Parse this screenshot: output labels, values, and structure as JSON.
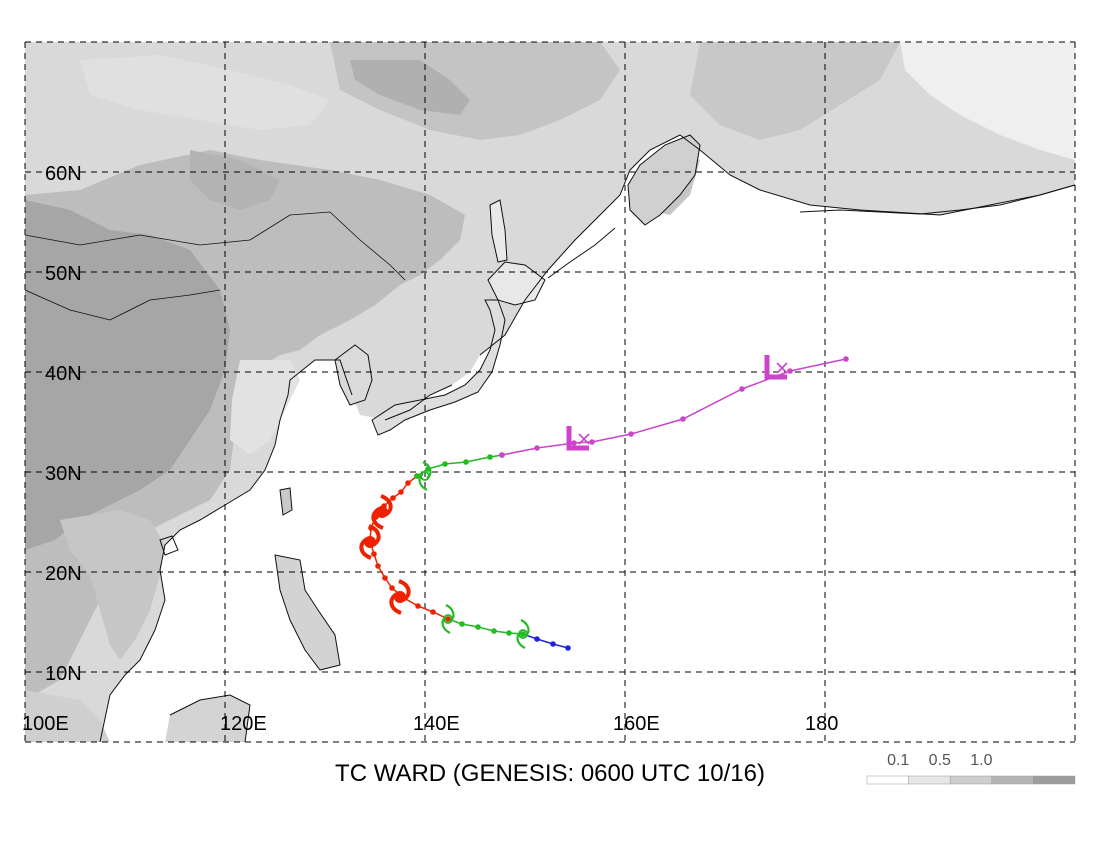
{
  "title": "TC WARD (GENESIS: 0600 UTC 10/16)",
  "map": {
    "lat_labels": [
      "60N",
      "50N",
      "40N",
      "30N",
      "20N",
      "10N"
    ],
    "lon_labels": [
      "100E",
      "120E",
      "140E",
      "160E",
      "180"
    ],
    "lon_range": [
      100,
      205
    ],
    "lat_range": [
      3,
      73
    ],
    "gridline_style": "dashed"
  },
  "track": {
    "stages": [
      {
        "name": "pre-genesis",
        "color": "#2222dd",
        "points": [
          [
            154.3,
            12.4
          ],
          [
            152.8,
            12.8
          ],
          [
            151.2,
            13.3
          ],
          [
            149.8,
            13.8
          ]
        ]
      },
      {
        "name": "tropical storm",
        "color": "#22bb22",
        "points": [
          [
            149.8,
            13.8
          ],
          [
            148.4,
            13.9
          ],
          [
            146.9,
            14.1
          ],
          [
            145.3,
            14.5
          ],
          [
            143.7,
            14.8
          ],
          [
            142.3,
            15.3
          ]
        ]
      },
      {
        "name": "typhoon",
        "color": "#ee2200",
        "points": [
          [
            142.3,
            15.3
          ],
          [
            140.8,
            16.0
          ],
          [
            139.3,
            16.6
          ],
          [
            137.9,
            17.4
          ],
          [
            136.7,
            18.4
          ],
          [
            136.0,
            19.4
          ],
          [
            135.3,
            20.6
          ],
          [
            134.9,
            21.8
          ],
          [
            134.5,
            23.1
          ],
          [
            134.6,
            24.4
          ],
          [
            135.1,
            25.5
          ],
          [
            135.9,
            26.6
          ],
          [
            136.8,
            27.4
          ],
          [
            137.6,
            28.0
          ],
          [
            138.3,
            28.9
          ],
          [
            139.2,
            29.6
          ]
        ]
      },
      {
        "name": "tropical storm 2",
        "color": "#22bb22",
        "points": [
          [
            139.2,
            29.6
          ],
          [
            140.3,
            30.3
          ],
          [
            142.0,
            30.8
          ],
          [
            144.1,
            31.0
          ],
          [
            146.5,
            31.5
          ],
          [
            147.7,
            31.7
          ]
        ]
      },
      {
        "name": "extratropical",
        "color": "#cc44cc",
        "points": [
          [
            147.7,
            31.7
          ],
          [
            151.2,
            32.4
          ],
          [
            154.9,
            32.9
          ],
          [
            156.7,
            33.0
          ],
          [
            160.6,
            33.8
          ],
          [
            165.8,
            35.3
          ],
          [
            171.7,
            38.3
          ],
          [
            176.5,
            40.1
          ],
          [
            182.1,
            41.3
          ]
        ]
      }
    ],
    "symbols": [
      {
        "type": "tropical-storm",
        "color": "#22bb22",
        "at": [
          149.8,
          13.8
        ]
      },
      {
        "type": "tropical-storm",
        "color": "#22bb22",
        "at": [
          142.3,
          15.3
        ]
      },
      {
        "type": "typhoon",
        "color": "#ee2200",
        "at": [
          137.5,
          17.5
        ]
      },
      {
        "type": "typhoon",
        "color": "#ee2200",
        "at": [
          134.5,
          23.0
        ]
      },
      {
        "type": "typhoon",
        "color": "#ee2200",
        "at": [
          135.7,
          26.0
        ]
      },
      {
        "type": "tropical-storm",
        "color": "#22bb22",
        "at": [
          140.0,
          29.6
        ]
      },
      {
        "type": "low",
        "color": "#cc44cc",
        "at": [
          155.2,
          33.2
        ]
      },
      {
        "type": "low",
        "color": "#cc44cc",
        "at": [
          175.0,
          40.3
        ]
      }
    ]
  },
  "colorbar": {
    "labels": [
      "0.1",
      "0.5",
      "1.0"
    ],
    "shades": [
      "#ffffff",
      "#e6e6e6",
      "#cdcdcd",
      "#b4b4b4",
      "#9c9c9c"
    ]
  }
}
